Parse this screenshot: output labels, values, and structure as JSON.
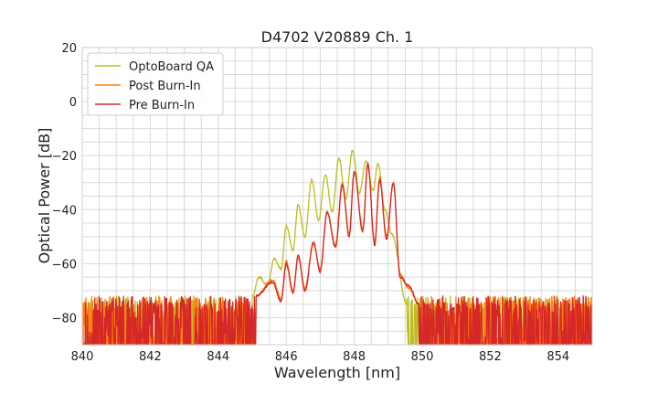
{
  "chart_data": {
    "type": "line",
    "title": "D4702 V20889 Ch. 1",
    "xlabel": "Wavelength [nm]",
    "ylabel": "Optical Power [dB]",
    "xlim": [
      840,
      855
    ],
    "ylim": [
      -90,
      20
    ],
    "x_ticks": [
      840,
      842,
      844,
      846,
      848,
      850,
      852,
      854
    ],
    "y_ticks": [
      -80,
      -60,
      -40,
      -20,
      0,
      20
    ],
    "x_tick_labels": [
      "840",
      "842",
      "844",
      "846",
      "848",
      "850",
      "852",
      "854"
    ],
    "y_tick_labels": [
      "−80",
      "−60",
      "−40",
      "−20",
      "0",
      "20"
    ],
    "grid": true,
    "legend_position": "top-left",
    "noise_floor_db": [
      -90,
      -72
    ],
    "series": [
      {
        "name": "OptoBoard QA",
        "color": "#bcbd22",
        "noise_range_nm": [
          [
            840,
            845.0
          ],
          [
            849.55,
            855
          ]
        ],
        "peaks": [
          {
            "x": 845.2,
            "y": -65
          },
          {
            "x": 845.65,
            "y": -58
          },
          {
            "x": 846.0,
            "y": -46
          },
          {
            "x": 846.35,
            "y": -38
          },
          {
            "x": 846.75,
            "y": -29
          },
          {
            "x": 847.15,
            "y": -27
          },
          {
            "x": 847.55,
            "y": -21
          },
          {
            "x": 847.95,
            "y": -18
          },
          {
            "x": 848.35,
            "y": -22
          },
          {
            "x": 848.7,
            "y": -23
          },
          {
            "x": 849.1,
            "y": -49
          }
        ],
        "dips": [
          {
            "x": 845.45,
            "y": -68
          },
          {
            "x": 845.85,
            "y": -62
          },
          {
            "x": 846.2,
            "y": -55
          },
          {
            "x": 846.55,
            "y": -50
          },
          {
            "x": 846.95,
            "y": -44
          },
          {
            "x": 847.35,
            "y": -41
          },
          {
            "x": 847.75,
            "y": -36
          },
          {
            "x": 848.15,
            "y": -34
          },
          {
            "x": 848.55,
            "y": -33
          },
          {
            "x": 848.9,
            "y": -40
          }
        ]
      },
      {
        "name": "Post Burn-In",
        "color": "#ff7f0e",
        "noise_range_nm": [
          [
            840,
            845.1
          ],
          [
            849.9,
            855
          ]
        ],
        "peaks": [
          {
            "x": 845.6,
            "y": -66
          },
          {
            "x": 846.0,
            "y": -59
          },
          {
            "x": 846.35,
            "y": -58
          },
          {
            "x": 846.8,
            "y": -53
          },
          {
            "x": 847.2,
            "y": -41
          },
          {
            "x": 847.65,
            "y": -30
          },
          {
            "x": 848.0,
            "y": -26
          },
          {
            "x": 848.4,
            "y": -23
          },
          {
            "x": 848.75,
            "y": -28
          },
          {
            "x": 849.15,
            "y": -30
          },
          {
            "x": 849.6,
            "y": -69
          }
        ],
        "dips": [
          {
            "x": 845.85,
            "y": -73
          },
          {
            "x": 846.2,
            "y": -70
          },
          {
            "x": 846.55,
            "y": -69
          },
          {
            "x": 847.0,
            "y": -62
          },
          {
            "x": 847.45,
            "y": -53
          },
          {
            "x": 847.85,
            "y": -49
          },
          {
            "x": 848.25,
            "y": -47
          },
          {
            "x": 848.6,
            "y": -52
          },
          {
            "x": 848.95,
            "y": -50
          },
          {
            "x": 849.35,
            "y": -64
          }
        ]
      },
      {
        "name": "Pre Burn-In",
        "color": "#d62728",
        "noise_range_nm": [
          [
            840,
            845.1
          ],
          [
            849.9,
            855
          ]
        ],
        "peaks": [
          {
            "x": 845.6,
            "y": -67
          },
          {
            "x": 846.0,
            "y": -60
          },
          {
            "x": 846.35,
            "y": -57
          },
          {
            "x": 846.8,
            "y": -52
          },
          {
            "x": 847.2,
            "y": -41
          },
          {
            "x": 847.65,
            "y": -31
          },
          {
            "x": 848.0,
            "y": -26
          },
          {
            "x": 848.4,
            "y": -23
          },
          {
            "x": 848.75,
            "y": -29
          },
          {
            "x": 849.15,
            "y": -30
          },
          {
            "x": 849.6,
            "y": -68
          }
        ],
        "dips": [
          {
            "x": 845.85,
            "y": -74
          },
          {
            "x": 846.2,
            "y": -71
          },
          {
            "x": 846.55,
            "y": -70
          },
          {
            "x": 847.0,
            "y": -63
          },
          {
            "x": 847.45,
            "y": -54
          },
          {
            "x": 847.85,
            "y": -50
          },
          {
            "x": 848.25,
            "y": -48
          },
          {
            "x": 848.6,
            "y": -53
          },
          {
            "x": 848.95,
            "y": -51
          },
          {
            "x": 849.35,
            "y": -65
          }
        ]
      }
    ]
  }
}
